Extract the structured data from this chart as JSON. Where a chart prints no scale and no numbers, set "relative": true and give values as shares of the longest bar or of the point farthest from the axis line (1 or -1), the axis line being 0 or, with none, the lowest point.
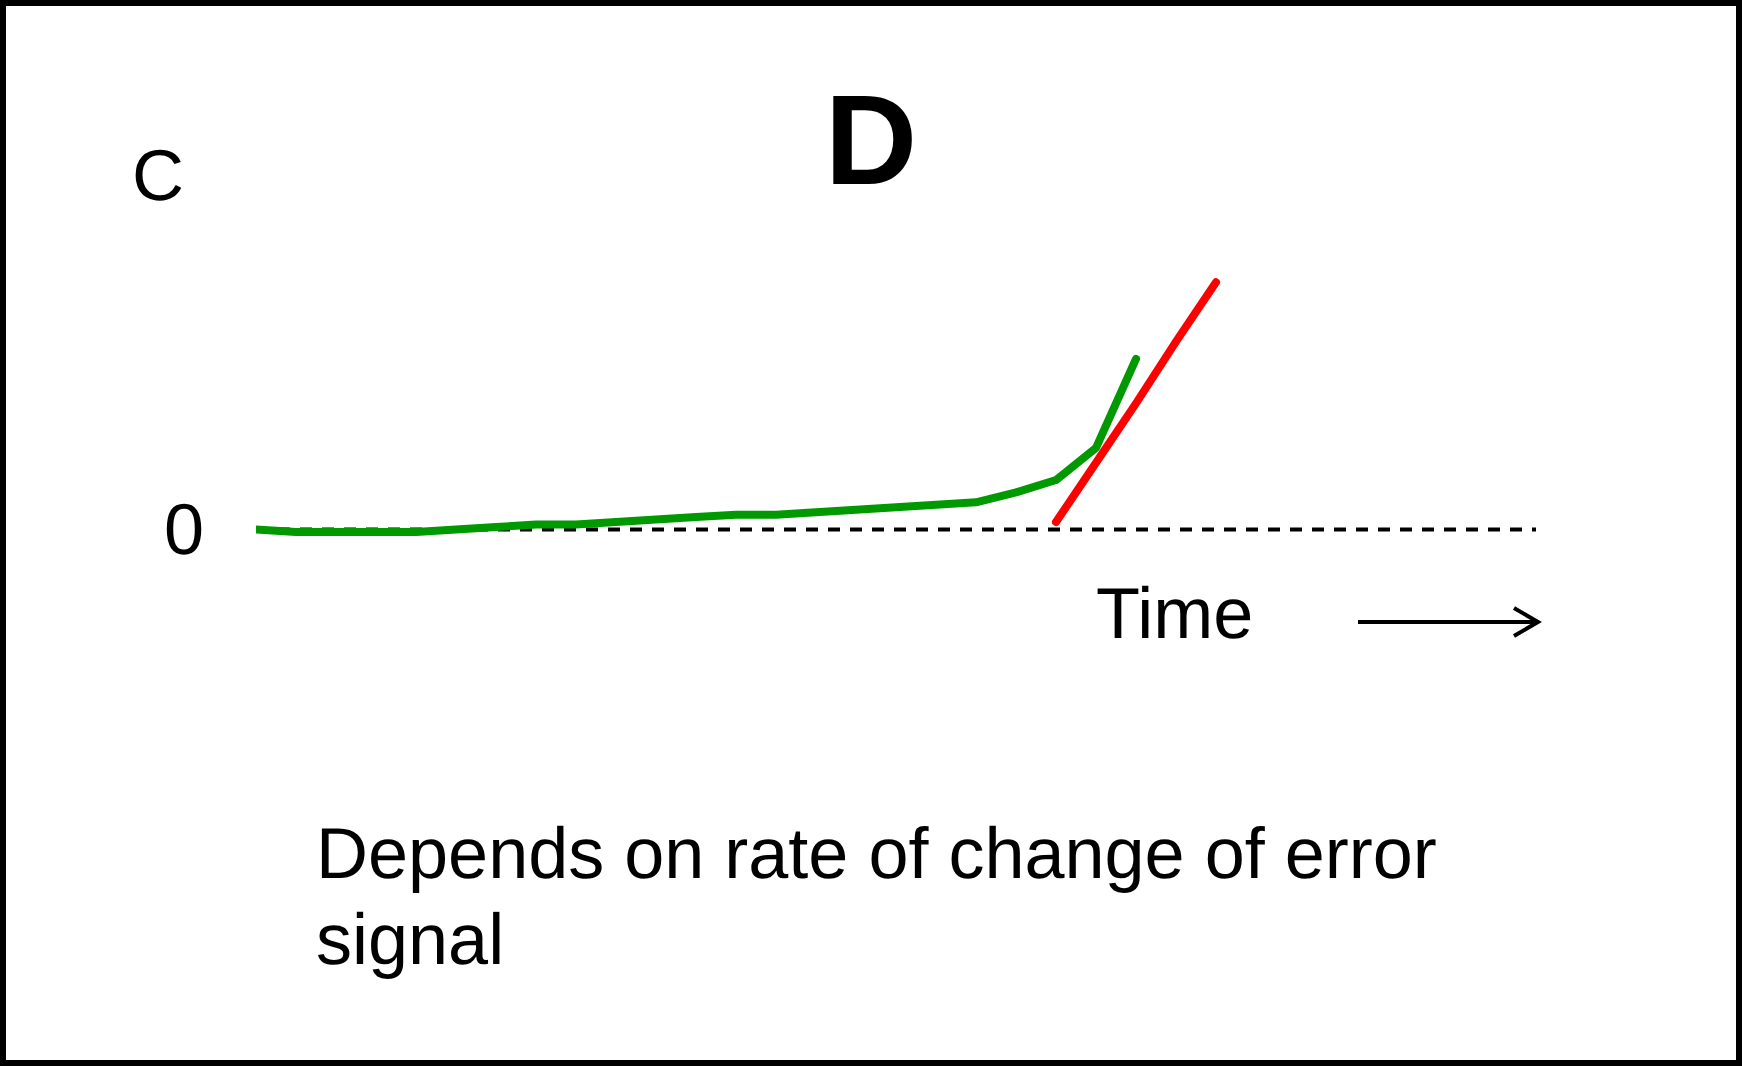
{
  "chart_data": {
    "type": "line",
    "title": "D",
    "xlabel": "Time",
    "ylabel": "C",
    "relative": true,
    "marker": "none",
    "line_style": "solid",
    "categories": [
      null,
      null,
      null,
      null,
      null,
      null,
      null,
      null,
      null,
      null,
      null,
      null,
      null,
      null,
      null,
      null,
      null,
      null,
      null,
      null,
      null,
      null,
      null,
      null,
      null,
      null,
      null,
      null,
      null,
      null,
      null,
      null,
      null
    ],
    "series": [
      {
        "color": "#009900",
        "values": [
          0,
          -0.01,
          -0.01,
          -0.01,
          -0.01,
          0,
          0.01,
          0.02,
          0.02,
          0.03,
          0.04,
          0.05,
          0.06,
          0.06,
          0.07,
          0.08,
          0.09,
          0.1,
          0.11,
          0.15,
          0.2,
          0.33,
          0.69,
          null,
          null,
          null,
          null,
          null,
          null,
          null,
          null,
          null,
          null
        ]
      },
      {
        "color": "#ff0000",
        "values": [
          null,
          null,
          null,
          null,
          null,
          null,
          null,
          null,
          null,
          null,
          null,
          null,
          null,
          null,
          null,
          null,
          null,
          null,
          null,
          null,
          0.03,
          0.27,
          0.51,
          0.76,
          1.0,
          null,
          null,
          null,
          null,
          null,
          null,
          null,
          null
        ]
      }
    ],
    "ref_lines": [
      {
        "axis": "y",
        "value": 0,
        "label": "0",
        "line_style": "dashed",
        "color": "#000000"
      }
    ],
    "annotations": [
      "Depends on rate of change of error signal"
    ]
  }
}
